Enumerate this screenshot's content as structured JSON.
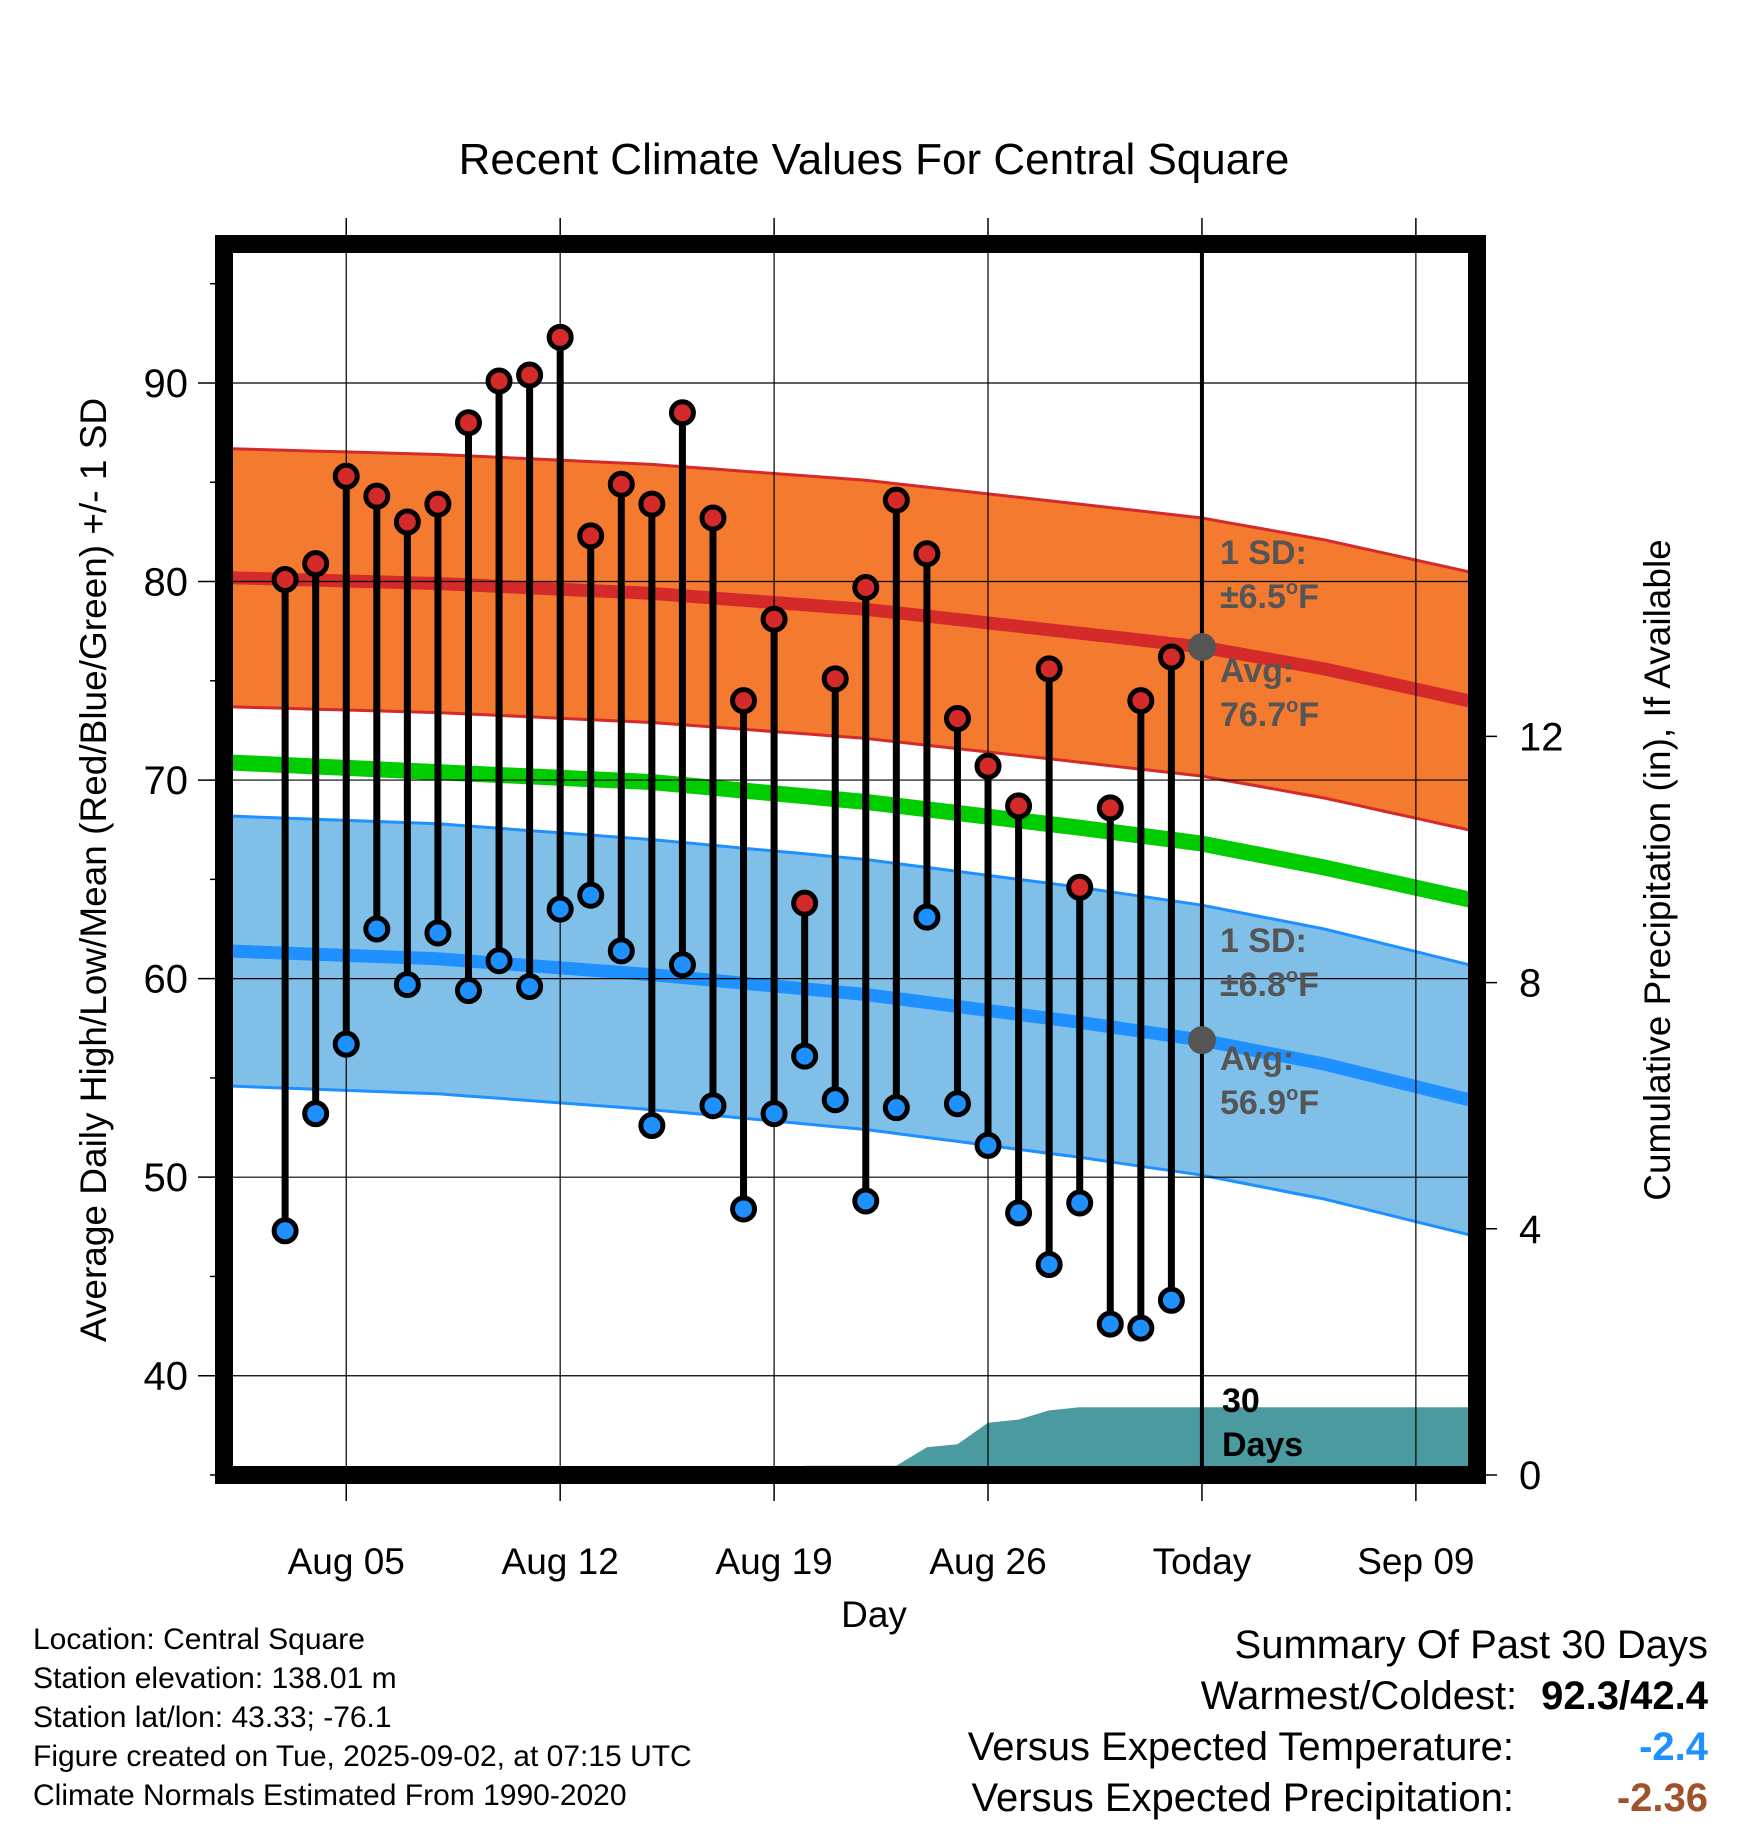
{
  "chart_data": {
    "type": "line",
    "title": "Recent Climate Values For Central Square",
    "xlabel": "Day",
    "ylabel": "Average Daily High/Low/Mean (Red/Blue/Green) +/- 1 SD",
    "y2label": "Cumulative Precipitation (in), If Available",
    "ylim": [
      35,
      97
    ],
    "y2lim": [
      0,
      20
    ],
    "yticks": [
      "40",
      "50",
      "60",
      "70",
      "80",
      "90"
    ],
    "y2ticks": [
      "0",
      "4",
      "8",
      "12"
    ],
    "xticks": [
      "Aug 05",
      "Aug 12",
      "Aug 19",
      "Aug 26",
      "Today",
      "Sep 09"
    ],
    "xrange": [
      "2025-08-01",
      "2025-09-11"
    ],
    "today": "2025-09-02",
    "grid": true,
    "colors": {
      "high": "#d42a2a",
      "high_band": "#f47a30",
      "low": "#1e90ff",
      "low_band": "#80c0e8",
      "mean": "#00cc00",
      "precip": "#4a9aa0",
      "obs_line": "#000000",
      "annotation": "#555555"
    },
    "days": [
      "2025-08-03",
      "2025-08-04",
      "2025-08-05",
      "2025-08-06",
      "2025-08-07",
      "2025-08-08",
      "2025-08-09",
      "2025-08-10",
      "2025-08-11",
      "2025-08-12",
      "2025-08-13",
      "2025-08-14",
      "2025-08-15",
      "2025-08-16",
      "2025-08-17",
      "2025-08-18",
      "2025-08-19",
      "2025-08-20",
      "2025-08-21",
      "2025-08-22",
      "2025-08-23",
      "2025-08-24",
      "2025-08-25",
      "2025-08-26",
      "2025-08-27",
      "2025-08-28",
      "2025-08-29",
      "2025-08-30",
      "2025-08-31",
      "2025-09-01"
    ],
    "observed_high": [
      80.1,
      80.9,
      85.3,
      84.3,
      83.0,
      83.9,
      88.0,
      90.1,
      90.4,
      92.3,
      82.3,
      84.9,
      83.9,
      88.5,
      83.2,
      74.0,
      78.1,
      63.8,
      75.1,
      79.7,
      84.1,
      81.4,
      73.1,
      70.7,
      68.7,
      75.6,
      64.6,
      68.6,
      74.0,
      76.2
    ],
    "observed_low": [
      47.3,
      53.2,
      56.7,
      62.5,
      59.7,
      62.3,
      59.4,
      60.9,
      59.6,
      63.5,
      64.2,
      61.4,
      52.6,
      60.7,
      53.6,
      48.4,
      53.2,
      56.1,
      53.9,
      48.8,
      53.5,
      63.1,
      53.7,
      51.6,
      48.2,
      45.6,
      48.7,
      42.6,
      42.4,
      43.8
    ],
    "normal_high": {
      "x": [
        "2025-08-01",
        "2025-08-08",
        "2025-08-15",
        "2025-08-22",
        "2025-08-29",
        "2025-09-02",
        "2025-09-06",
        "2025-09-11"
      ],
      "values": [
        80.2,
        79.9,
        79.4,
        78.6,
        77.4,
        76.7,
        75.6,
        73.9
      ],
      "sd": 6.5
    },
    "normal_low": {
      "x": [
        "2025-08-01",
        "2025-08-08",
        "2025-08-15",
        "2025-08-22",
        "2025-08-29",
        "2025-09-02",
        "2025-09-06",
        "2025-09-11"
      ],
      "values": [
        61.4,
        61.0,
        60.2,
        59.2,
        57.8,
        56.9,
        55.7,
        53.8
      ],
      "sd": 6.8
    },
    "normal_mean": {
      "x": [
        "2025-08-01",
        "2025-08-08",
        "2025-08-15",
        "2025-08-22",
        "2025-08-29",
        "2025-09-02",
        "2025-09-06",
        "2025-09-11"
      ],
      "values": [
        70.9,
        70.4,
        69.9,
        68.9,
        67.6,
        66.8,
        65.6,
        63.9
      ]
    },
    "precipitation": {
      "x": [
        "2025-08-19",
        "2025-08-20",
        "2025-08-21",
        "2025-08-22",
        "2025-08-23",
        "2025-08-24",
        "2025-08-25",
        "2025-08-26",
        "2025-08-27",
        "2025-08-28",
        "2025-08-29",
        "2025-09-02",
        "2025-09-11"
      ],
      "values": [
        0.0,
        0.15,
        0.15,
        0.15,
        0.15,
        0.45,
        0.5,
        0.85,
        0.9,
        1.05,
        1.1,
        1.1,
        1.1
      ]
    },
    "annotations": {
      "high_sd_label": "1 SD:",
      "high_sd_value": "±6.5",
      "high_avg_label": "Avg:",
      "high_avg_value": "76.7",
      "low_sd_label": "1 SD:",
      "low_sd_value": "±6.8",
      "low_avg_label": "Avg:",
      "low_avg_value": "56.9",
      "degree_symbol": "o",
      "unit": "F",
      "today_line1": "30",
      "today_line2": "Days"
    }
  },
  "info": {
    "location": "Location: Central Square",
    "elevation": "Station elevation: 138.01 m",
    "latlon": "Station lat/lon: 43.33; -76.1",
    "created": "Figure created on Tue, 2025-09-02, at 07:15 UTC",
    "normals": "Climate Normals Estimated From 1990-2020"
  },
  "summary": {
    "heading": "Summary Of Past 30 Days",
    "warmest_label": "Warmest/Coldest:",
    "warmest_value": "92.3/42.4",
    "temp_label": "Versus Expected Temperature:",
    "temp_value": "-2.4",
    "temp_color": "#1e90ff",
    "precip_label": "Versus Expected Precipitation:",
    "precip_value": "-2.36",
    "precip_color": "#a0522d"
  }
}
